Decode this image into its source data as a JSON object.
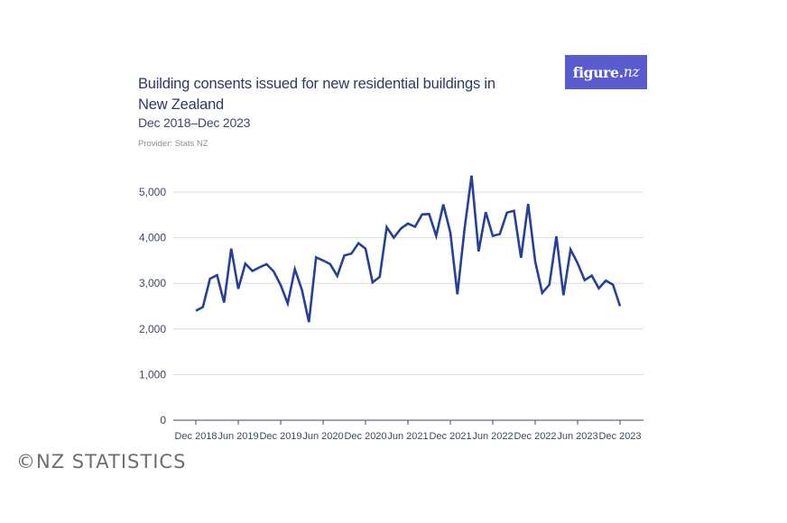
{
  "logo": {
    "main": "figure.",
    "accent": "nz"
  },
  "watermark": "©NZ STATISTICS",
  "chart_data": {
    "type": "line",
    "title": "Building consents issued for new residential buildings in New Zealand",
    "subtitle": "Dec 2018–Dec 2023",
    "provider": "Provider: Stats NZ",
    "xlabel": "",
    "ylabel": "",
    "ylim": [
      0,
      5000
    ],
    "yticks": [
      0,
      1000,
      2000,
      3000,
      4000,
      5000
    ],
    "ytick_labels": [
      "0",
      "1,000",
      "2,000",
      "3,000",
      "4,000",
      "5,000"
    ],
    "xtick_labels": [
      "Dec 2018",
      "Jun 2019",
      "Dec 2019",
      "Jun 2020",
      "Dec 2020",
      "Jun 2021",
      "Dec 2021",
      "Jun 2022",
      "Dec 2022",
      "Jun 2023",
      "Dec 2023"
    ],
    "grid": true,
    "line_color": "#26409a",
    "series": [
      {
        "values": [
          2400,
          2480,
          3100,
          3180,
          2580,
          3760,
          2880,
          3430,
          3270,
          3350,
          3420,
          3260,
          2960,
          2560,
          3310,
          2860,
          2150,
          3570,
          3500,
          3420,
          3160,
          3610,
          3650,
          3880,
          3760,
          3020,
          3140,
          4230,
          4000,
          4200,
          4310,
          4240,
          4510,
          4520,
          4040,
          4730,
          4110,
          2760,
          4190,
          5360,
          3700,
          4560,
          4040,
          4080,
          4550,
          4590,
          3560,
          4740,
          3480,
          2790,
          2970,
          4030,
          2740,
          3740,
          3440,
          3070,
          3170,
          2890,
          3060,
          2970,
          2500
        ]
      }
    ]
  }
}
